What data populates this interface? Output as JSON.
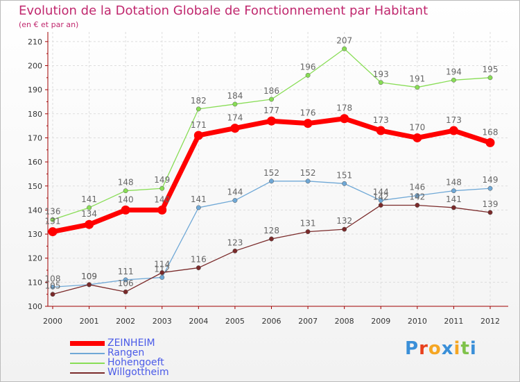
{
  "header": {
    "title": "Evolution de la Dotation Globale de Fonctionnement par Habitant",
    "subtitle": "(en € et par an)"
  },
  "logo": {
    "letters": [
      "P",
      "r",
      "o",
      "x",
      "i",
      "t",
      "i"
    ]
  },
  "colors": {
    "title": "#c0286e",
    "axis": "#a00000",
    "legend_text": "#4a5ae8",
    "grid": "#dddddd",
    "logo": [
      "#3a8fd8",
      "#e8401c",
      "#f5a623",
      "#3a8fd8",
      "#f5a623",
      "#7fc24a",
      "#3a8fd8"
    ]
  },
  "chart_data": {
    "type": "line",
    "title": "Evolution de la Dotation Globale de Fonctionnement par Habitant",
    "xlabel": "",
    "ylabel": "(en € et par an)",
    "ylim": [
      100,
      210
    ],
    "yticks": [
      100,
      110,
      120,
      130,
      140,
      150,
      160,
      170,
      180,
      190,
      200,
      210
    ],
    "grid": true,
    "legend": "bottom-left",
    "categories": [
      "2000",
      "2001",
      "2002",
      "2003",
      "2004",
      "2005",
      "2006",
      "2007",
      "2008",
      "2009",
      "2010",
      "2011",
      "2012"
    ],
    "series": [
      {
        "name": "ZEINHEIM",
        "color": "#ff0000",
        "values": [
          131,
          134,
          140,
          140,
          171,
          174,
          177,
          176,
          178,
          173,
          170,
          173,
          168
        ]
      },
      {
        "name": "Rangen",
        "color": "#6fa8d6",
        "values": [
          108,
          109,
          111,
          112,
          141,
          144,
          152,
          152,
          151,
          144,
          146,
          148,
          149
        ]
      },
      {
        "name": "Hohengoeft",
        "color": "#88dd55",
        "values": [
          136,
          141,
          148,
          149,
          182,
          184,
          186,
          196,
          207,
          193,
          191,
          194,
          195
        ]
      },
      {
        "name": "Willgottheim",
        "color": "#7a2a2a",
        "values": [
          105,
          109,
          106,
          114,
          116,
          123,
          128,
          131,
          132,
          142,
          142,
          141,
          139
        ]
      }
    ]
  }
}
